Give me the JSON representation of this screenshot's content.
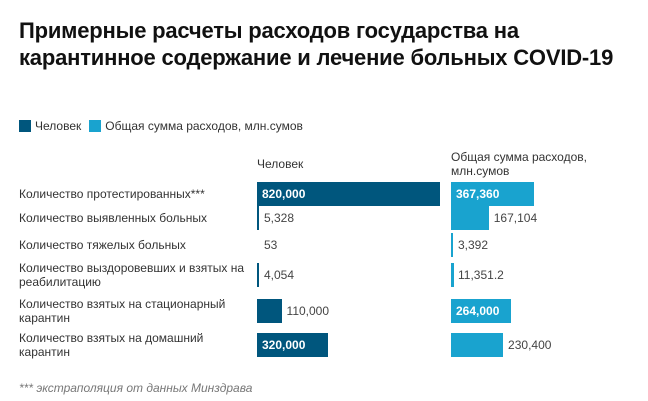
{
  "title": "Примерные расчеты расходов государства на карантинное содержание и лечение больных COVID-19",
  "footnote": "*** экстраполяция от данных Минздрава",
  "colors": {
    "people": "#00567d",
    "cost": "#19a3cf"
  },
  "chart_data": {
    "type": "bar",
    "title": "Примерные расчеты расходов государства на карантинное содержание и лечение больных COVID-19",
    "legend": [
      "Человек",
      "Общая сумма расходов, млн.сумов"
    ],
    "legend_position": "top-left",
    "categories": [
      "Количество протестированных***",
      "Количество выявленных больных",
      "Количество тяжелых больных",
      "Количество выздоровевших и взятых на реабилитацию",
      "Количество взятых на стационарный карантин",
      "Количество взятых на домашний карантин"
    ],
    "series": [
      {
        "name": "Человек",
        "header": "Человек",
        "values": [
          820000,
          5328,
          53,
          4054,
          110000,
          320000
        ],
        "labels": [
          "820,000",
          "5,328",
          "53",
          "4,054",
          "110,000",
          "320,000"
        ],
        "max": 820000
      },
      {
        "name": "Общая сумма расходов, млн.сумов",
        "header": "Общая сумма расходов, млн.сумов",
        "values": [
          367360,
          167104,
          3392,
          11351.2,
          264000,
          230400
        ],
        "labels": [
          "367,360",
          "167,104",
          "3,392",
          "11,351.2",
          "264,000",
          "230,400"
        ],
        "max": 367360
      }
    ]
  }
}
